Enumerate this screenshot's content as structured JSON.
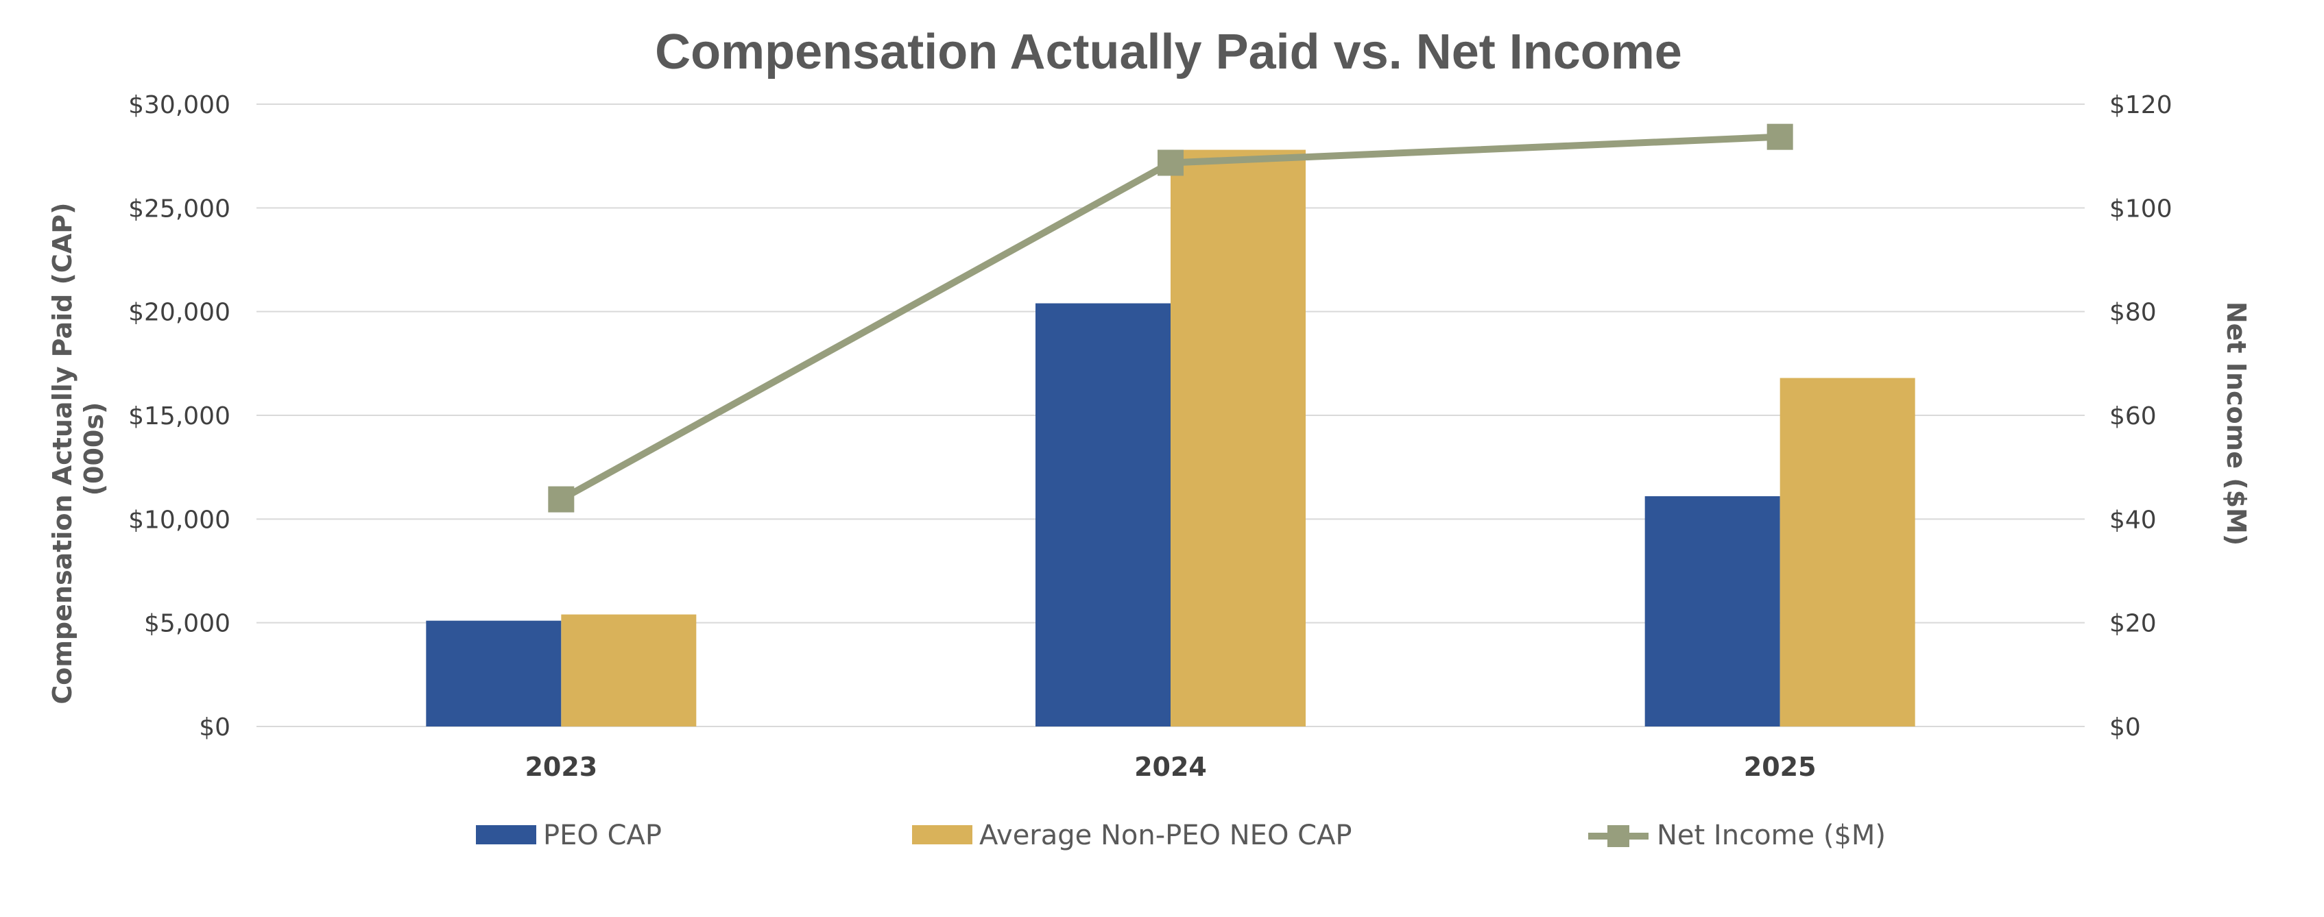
{
  "chart_data": {
    "type": "bar",
    "title": "Compensation Actually Paid vs. Net Income",
    "categories": [
      "2023",
      "2024",
      "2025"
    ],
    "ylabel_left_line1": "Compensation Actually Paid (CAP)",
    "ylabel_left_line2": "(000s)",
    "ylabel_right": "Net Income ($M)",
    "ylim_left": [
      0,
      30000
    ],
    "ylim_right": [
      0,
      120
    ],
    "yticks_left": [
      "$0",
      "$5,000",
      "$10,000",
      "$15,000",
      "$20,000",
      "$25,000",
      "$30,000"
    ],
    "yticks_right": [
      "$0",
      "$20",
      "$40",
      "$60",
      "$80",
      "$100",
      "$120"
    ],
    "grid": true,
    "legend_position": "bottom",
    "series": [
      {
        "name": "PEO CAP",
        "type": "bar",
        "axis": "left",
        "color": "#2f5597",
        "values": [
          5100,
          20400,
          11100
        ]
      },
      {
        "name": "Average Non-PEO NEO CAP",
        "type": "bar",
        "axis": "left",
        "color": "#d9b25a",
        "values": [
          5400,
          27800,
          16800
        ]
      },
      {
        "name": "Net Income ($M)",
        "type": "line",
        "axis": "right",
        "color": "#979e7d",
        "marker": "square",
        "values": [
          43.8,
          108.7,
          113.7
        ]
      }
    ]
  }
}
